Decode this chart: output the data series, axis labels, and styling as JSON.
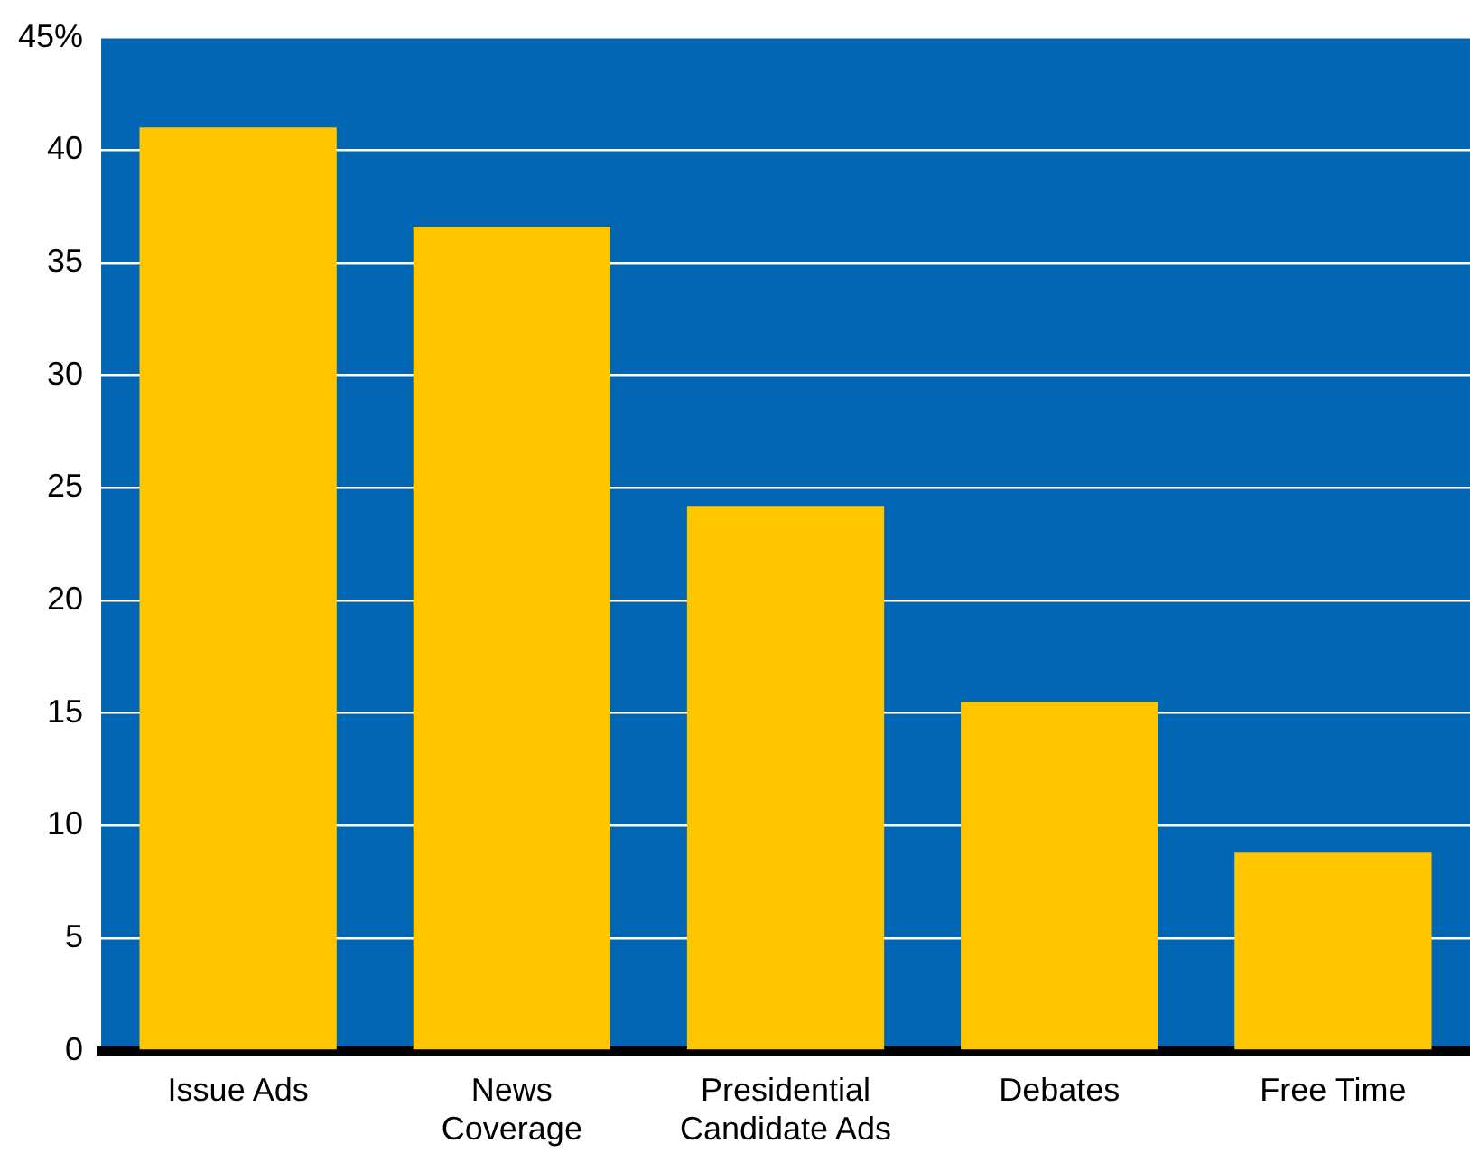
{
  "chart_data": {
    "type": "bar",
    "categories": [
      "Issue Ads",
      "News Coverage",
      "Presidential Candidate Ads",
      "Debates",
      "Free Time"
    ],
    "values": [
      41,
      36.6,
      24.2,
      15.5,
      8.8
    ],
    "color": "#ffc600",
    "ylim": [
      0,
      45
    ],
    "yticks": [
      0,
      5,
      10,
      15,
      20,
      25,
      30,
      35,
      40,
      {
        "value": 45,
        "label": "45%"
      }
    ],
    "grid": "y"
  }
}
